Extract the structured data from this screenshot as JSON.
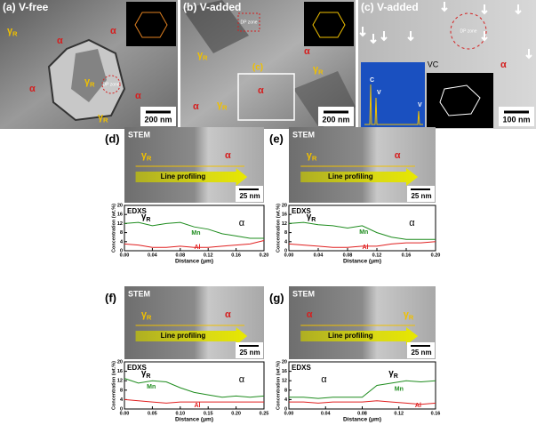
{
  "micrographs": [
    {
      "label": "(a) V-free",
      "scale": "200 nm",
      "zone": "DP zone",
      "labels": [
        {
          "text": "γ",
          "sub": "R"
        },
        {
          "text": "γ",
          "sub": "R"
        },
        {
          "text": "γ",
          "sub": "R"
        },
        {
          "text": "α"
        },
        {
          "text": "α"
        },
        {
          "text": "α"
        },
        {
          "text": "α"
        }
      ]
    },
    {
      "label": "(b) V-added",
      "scale": "200 nm",
      "zone": "DP zone",
      "box": "(c)",
      "labels": [
        {
          "text": "γ",
          "sub": "R"
        },
        {
          "text": "γ",
          "sub": "R"
        },
        {
          "text": "γ",
          "sub": "R"
        },
        {
          "text": "α"
        },
        {
          "text": "α"
        },
        {
          "text": "α"
        }
      ]
    },
    {
      "label": "(c) V-added",
      "scale": "100 nm",
      "zone": "DP zone",
      "particle": "VC",
      "spectrum": [
        "C",
        "V",
        "V"
      ],
      "labels": [
        {
          "text": "α"
        }
      ]
    }
  ],
  "panels": [
    {
      "label": "(d)",
      "stem": {
        "title": "STEM",
        "gamma": {
          "text": "γ",
          "sub": "R"
        },
        "alpha": "α",
        "arrow": "Line profiling",
        "scale": "25 nm"
      },
      "edxs": {
        "title": "EDXS",
        "ylabel": "Concentration (wt.%)",
        "xlabel": "Distance (μm)",
        "gamma": {
          "text": "γ",
          "sub": "R"
        },
        "alpha": "α",
        "xlim": [
          0,
          0.2
        ],
        "xticks": [
          {
            "value": 0,
            "label": "0.00"
          },
          {
            "value": 0.04,
            "label": "0.04"
          },
          {
            "value": 0.08,
            "label": "0.08"
          },
          {
            "value": 0.12,
            "label": "0.12"
          },
          {
            "value": 0.16,
            "label": "0.16"
          },
          {
            "value": 0.2,
            "label": "0.20"
          }
        ],
        "ylim": [
          0,
          20
        ],
        "yticks": [
          0,
          4,
          8,
          12,
          16,
          20
        ],
        "x": [
          0,
          0.02,
          0.04,
          0.06,
          0.08,
          0.1,
          0.12,
          0.14,
          0.16,
          0.18,
          0.2
        ],
        "series": [
          {
            "name": "Mn",
            "color": "#1e8c1e",
            "values": [
              12,
              12.5,
              11,
              12,
              12.5,
              10.5,
              9.5,
              7.5,
              6.5,
              5.5,
              5.5
            ]
          },
          {
            "name": "Al",
            "color": "#e02020",
            "values": [
              3,
              2.5,
              1.5,
              1.5,
              2,
              1.5,
              1.5,
              2,
              2.5,
              3,
              4.5
            ]
          }
        ]
      }
    },
    {
      "label": "(e)",
      "stem": {
        "title": "STEM",
        "gamma": {
          "text": "γ",
          "sub": "R"
        },
        "alpha": "α",
        "arrow": "Line profiling",
        "scale": "25 nm"
      },
      "edxs": {
        "title": "EDXS",
        "ylabel": "Concentration (wt.%)",
        "xlabel": "Distance (μm)",
        "gamma": {
          "text": "γ",
          "sub": "R"
        },
        "alpha": "α",
        "xlim": [
          0,
          0.2
        ],
        "xticks": [
          {
            "value": 0,
            "label": "0.00"
          },
          {
            "value": 0.04,
            "label": "0.04"
          },
          {
            "value": 0.08,
            "label": "0.08"
          },
          {
            "value": 0.12,
            "label": "0.12"
          },
          {
            "value": 0.16,
            "label": "0.16"
          },
          {
            "value": 0.2,
            "label": "0.20"
          }
        ],
        "ylim": [
          0,
          20
        ],
        "yticks": [
          0,
          4,
          8,
          12,
          16,
          20
        ],
        "x": [
          0,
          0.02,
          0.04,
          0.06,
          0.08,
          0.1,
          0.12,
          0.14,
          0.16,
          0.18,
          0.2
        ],
        "series": [
          {
            "name": "Mn",
            "color": "#1e8c1e",
            "values": [
              12,
              12.5,
              11.5,
              11,
              10,
              11,
              8,
              6,
              5,
              5,
              5
            ]
          },
          {
            "name": "Al",
            "color": "#e02020",
            "values": [
              3,
              2.5,
              2,
              1.5,
              1.5,
              2,
              2,
              3,
              3.5,
              3.5,
              4
            ]
          }
        ]
      }
    },
    {
      "label": "(f)",
      "stem": {
        "title": "STEM",
        "gamma": {
          "text": "γ",
          "sub": "R"
        },
        "alpha": "α",
        "arrow": "Line profiling",
        "scale": "25 nm"
      },
      "edxs": {
        "title": "EDXS",
        "ylabel": "Concentration (wt.%)",
        "xlabel": "Distance (μm)",
        "gamma": {
          "text": "γ",
          "sub": "R"
        },
        "alpha": "α",
        "xlim": [
          0,
          0.25
        ],
        "xticks": [
          {
            "value": 0,
            "label": "0.00"
          },
          {
            "value": 0.05,
            "label": "0.05"
          },
          {
            "value": 0.1,
            "label": "0.10"
          },
          {
            "value": 0.15,
            "label": "0.15"
          },
          {
            "value": 0.2,
            "label": "0.20"
          },
          {
            "value": 0.25,
            "label": "0.25"
          }
        ],
        "ylim": [
          0,
          20
        ],
        "yticks": [
          0,
          4,
          8,
          12,
          16,
          20
        ],
        "x": [
          0,
          0.025,
          0.05,
          0.075,
          0.1,
          0.125,
          0.15,
          0.175,
          0.2,
          0.225,
          0.25
        ],
        "series": [
          {
            "name": "Mn",
            "color": "#1e8c1e",
            "values": [
              13,
              11,
              12,
              11.5,
              9,
              7,
              6,
              5,
              5.5,
              5,
              5.5
            ]
          },
          {
            "name": "Al",
            "color": "#e02020",
            "values": [
              4,
              3.5,
              3,
              2.5,
              3,
              3,
              3,
              3,
              3,
              3,
              3
            ]
          }
        ]
      }
    },
    {
      "label": "(g)",
      "stem": {
        "title": "STEM",
        "gamma": {
          "text": "γ",
          "sub": "R"
        },
        "alpha": "α",
        "arrow": "Line profiling",
        "scale": "25 nm"
      },
      "edxs": {
        "title": "EDXS",
        "ylabel": "Concentration (wt.%)",
        "xlabel": "Distance (μm)",
        "gamma": {
          "text": "γ",
          "sub": "R"
        },
        "alpha": "α",
        "xlim": [
          0,
          0.16
        ],
        "xticks": [
          {
            "value": 0,
            "label": "0.00"
          },
          {
            "value": 0.04,
            "label": "0.04"
          },
          {
            "value": 0.08,
            "label": "0.08"
          },
          {
            "value": 0.12,
            "label": "0.12"
          },
          {
            "value": 0.16,
            "label": "0.16"
          }
        ],
        "ylim": [
          0,
          20
        ],
        "yticks": [
          0,
          4,
          8,
          12,
          16,
          20
        ],
        "x": [
          0,
          0.016,
          0.032,
          0.048,
          0.064,
          0.08,
          0.096,
          0.112,
          0.128,
          0.144,
          0.16
        ],
        "series": [
          {
            "name": "Mn",
            "color": "#1e8c1e",
            "values": [
              5,
              5,
              4.5,
              5,
              5,
              5,
              10,
              11,
              12,
              11.5,
              12
            ]
          },
          {
            "name": "Al",
            "color": "#e02020",
            "values": [
              3,
              3,
              2.5,
              3,
              3,
              3,
              3.5,
              3,
              2.5,
              2,
              2.5
            ]
          }
        ]
      }
    }
  ]
}
